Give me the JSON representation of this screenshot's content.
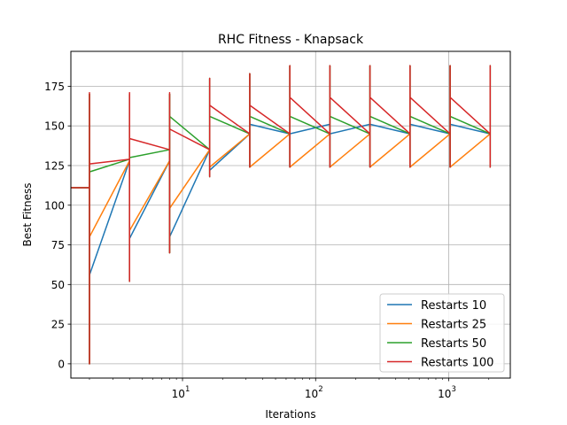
{
  "chart_data": {
    "type": "line",
    "title": "RHC Fitness - Knapsack",
    "xlabel": "Iterations",
    "ylabel": "Best Fitness",
    "xscale": "log",
    "xlim": [
      1.45,
      2900
    ],
    "ylim": [
      -9,
      197
    ],
    "grid": true,
    "legend_position": "lower right",
    "x_ticks": [
      {
        "value": 10,
        "base": "10",
        "exp": "1"
      },
      {
        "value": 100,
        "base": "10",
        "exp": "2"
      },
      {
        "value": 1000,
        "base": "10",
        "exp": "3"
      }
    ],
    "y_ticks": [
      {
        "value": 0,
        "label": "0"
      },
      {
        "value": 25,
        "label": "25"
      },
      {
        "value": 50,
        "label": "50"
      },
      {
        "value": 75,
        "label": "75"
      },
      {
        "value": 100,
        "label": "100"
      },
      {
        "value": 125,
        "label": "125"
      },
      {
        "value": 150,
        "label": "150"
      },
      {
        "value": 175,
        "label": "175"
      }
    ],
    "series": [
      {
        "name": "Restarts 10",
        "color": "#1f77b4",
        "points": [
          [
            1,
            111
          ],
          [
            2,
            111
          ],
          [
            2,
            0
          ],
          [
            2,
            170
          ],
          [
            2,
            56
          ],
          [
            4,
            128
          ],
          [
            4,
            52
          ],
          [
            4,
            170
          ],
          [
            4,
            79
          ],
          [
            8,
            128
          ],
          [
            8,
            70
          ],
          [
            8,
            170
          ],
          [
            8,
            80
          ],
          [
            16,
            135
          ],
          [
            16,
            118
          ],
          [
            16,
            180
          ],
          [
            16,
            122
          ],
          [
            32,
            145
          ],
          [
            32,
            124
          ],
          [
            32,
            183
          ],
          [
            32,
            151
          ],
          [
            64,
            145
          ],
          [
            64,
            124
          ],
          [
            64,
            188
          ],
          [
            64,
            145
          ],
          [
            128,
            151
          ],
          [
            128,
            124
          ],
          [
            128,
            188
          ],
          [
            128,
            145
          ],
          [
            256,
            151
          ],
          [
            256,
            124
          ],
          [
            256,
            188
          ],
          [
            256,
            151
          ],
          [
            512,
            145
          ],
          [
            512,
            124
          ],
          [
            512,
            188
          ],
          [
            512,
            151
          ],
          [
            1024,
            145
          ],
          [
            1024,
            124
          ],
          [
            1024,
            188
          ],
          [
            1024,
            151
          ],
          [
            2048,
            145
          ],
          [
            2048,
            124
          ],
          [
            2048,
            188
          ],
          [
            2048,
            145
          ]
        ]
      },
      {
        "name": "Restarts 25",
        "color": "#ff7f0e",
        "points": [
          [
            1,
            111
          ],
          [
            2,
            111
          ],
          [
            2,
            0
          ],
          [
            2,
            170
          ],
          [
            2,
            80
          ],
          [
            4,
            128
          ],
          [
            4,
            52
          ],
          [
            4,
            170
          ],
          [
            4,
            84
          ],
          [
            8,
            128
          ],
          [
            8,
            70
          ],
          [
            8,
            170
          ],
          [
            8,
            98
          ],
          [
            16,
            135
          ],
          [
            16,
            118
          ],
          [
            16,
            180
          ],
          [
            16,
            124
          ],
          [
            32,
            145
          ],
          [
            32,
            124
          ],
          [
            32,
            183
          ],
          [
            32,
            124
          ],
          [
            64,
            145
          ],
          [
            64,
            124
          ],
          [
            64,
            188
          ],
          [
            64,
            124
          ],
          [
            128,
            145
          ],
          [
            128,
            124
          ],
          [
            128,
            188
          ],
          [
            128,
            124
          ],
          [
            256,
            145
          ],
          [
            256,
            124
          ],
          [
            256,
            188
          ],
          [
            256,
            124
          ],
          [
            512,
            145
          ],
          [
            512,
            124
          ],
          [
            512,
            188
          ],
          [
            512,
            124
          ],
          [
            1024,
            145
          ],
          [
            1024,
            124
          ],
          [
            1024,
            188
          ],
          [
            1024,
            124
          ],
          [
            2048,
            145
          ],
          [
            2048,
            124
          ],
          [
            2048,
            188
          ],
          [
            2048,
            145
          ]
        ]
      },
      {
        "name": "Restarts 50",
        "color": "#2ca02c",
        "points": [
          [
            1,
            111
          ],
          [
            2,
            111
          ],
          [
            2,
            0
          ],
          [
            2,
            170
          ],
          [
            2,
            121
          ],
          [
            4,
            129
          ],
          [
            4,
            52
          ],
          [
            4,
            170
          ],
          [
            4,
            130
          ],
          [
            8,
            135
          ],
          [
            8,
            70
          ],
          [
            8,
            170
          ],
          [
            8,
            156
          ],
          [
            16,
            135
          ],
          [
            16,
            118
          ],
          [
            16,
            180
          ],
          [
            16,
            156
          ],
          [
            32,
            145
          ],
          [
            32,
            124
          ],
          [
            32,
            183
          ],
          [
            32,
            156
          ],
          [
            64,
            145
          ],
          [
            64,
            124
          ],
          [
            64,
            188
          ],
          [
            64,
            156
          ],
          [
            128,
            145
          ],
          [
            128,
            124
          ],
          [
            128,
            188
          ],
          [
            128,
            156
          ],
          [
            256,
            145
          ],
          [
            256,
            124
          ],
          [
            256,
            188
          ],
          [
            256,
            156
          ],
          [
            512,
            145
          ],
          [
            512,
            124
          ],
          [
            512,
            188
          ],
          [
            512,
            156
          ],
          [
            1024,
            145
          ],
          [
            1024,
            124
          ],
          [
            1024,
            188
          ],
          [
            1024,
            156
          ],
          [
            2048,
            145
          ],
          [
            2048,
            124
          ],
          [
            2048,
            188
          ],
          [
            2048,
            145
          ]
        ]
      },
      {
        "name": "Restarts 100",
        "color": "#d62728",
        "points": [
          [
            1,
            111
          ],
          [
            2,
            111
          ],
          [
            2,
            0
          ],
          [
            2,
            171
          ],
          [
            2,
            126
          ],
          [
            4,
            129
          ],
          [
            4,
            52
          ],
          [
            4,
            171
          ],
          [
            4,
            142
          ],
          [
            8,
            135
          ],
          [
            8,
            70
          ],
          [
            8,
            171
          ],
          [
            8,
            148
          ],
          [
            16,
            135
          ],
          [
            16,
            118
          ],
          [
            16,
            180
          ],
          [
            16,
            163
          ],
          [
            32,
            145
          ],
          [
            32,
            124
          ],
          [
            32,
            183
          ],
          [
            32,
            163
          ],
          [
            64,
            145
          ],
          [
            64,
            124
          ],
          [
            64,
            188
          ],
          [
            64,
            168
          ],
          [
            128,
            145
          ],
          [
            128,
            124
          ],
          [
            128,
            188
          ],
          [
            128,
            168
          ],
          [
            256,
            145
          ],
          [
            256,
            124
          ],
          [
            256,
            188
          ],
          [
            256,
            168
          ],
          [
            512,
            145
          ],
          [
            512,
            124
          ],
          [
            512,
            188
          ],
          [
            512,
            168
          ],
          [
            1024,
            145
          ],
          [
            1024,
            124
          ],
          [
            1024,
            188
          ],
          [
            1024,
            168
          ],
          [
            2048,
            145
          ],
          [
            2048,
            124
          ],
          [
            2048,
            188
          ],
          [
            2048,
            145
          ]
        ]
      }
    ]
  }
}
